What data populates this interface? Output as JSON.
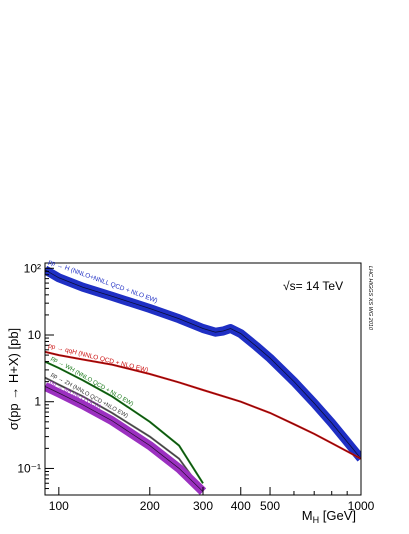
{
  "chart_data": {
    "type": "line",
    "title": "",
    "xlabel": "M_H [GeV]",
    "xlabel_main": "M",
    "xlabel_sub": "H",
    "xlabel_unit": " [GeV]",
    "ylabel": "σ(pp → H+X) [pb]",
    "xscale": "log",
    "yscale": "log",
    "xlim": [
      90,
      1000
    ],
    "ylim": [
      0.04,
      120
    ],
    "x_ticks": [
      100,
      200,
      300,
      400,
      500,
      1000
    ],
    "x_tick_labels": [
      "100",
      "200",
      "300",
      "400",
      "500",
      "1000"
    ],
    "y_ticks": [
      0.1,
      1,
      10,
      100
    ],
    "y_tick_labels": [
      "10⁻¹",
      "1",
      "10",
      "10²"
    ],
    "energy_label": "√s= 14 TeV",
    "side_label": "LHC HIGGS XS WG 2010",
    "grid": false,
    "series": [
      {
        "name": "pp → H (NNLO+NNLL QCD + NLO EW)",
        "color": "#1f2fc4",
        "band": true,
        "x": [
          90,
          100,
          120,
          150,
          200,
          250,
          300,
          330,
          350,
          370,
          400,
          450,
          500,
          600,
          700,
          800,
          900,
          1000
        ],
        "y": [
          95,
          72,
          52,
          38,
          25,
          17.5,
          12.5,
          11,
          11.5,
          12.5,
          10.5,
          6.8,
          4.5,
          2.0,
          0.95,
          0.48,
          0.25,
          0.14
        ]
      },
      {
        "name": "pp → qqH (NNLO QCD + NLO EW)",
        "color": "#cc1111",
        "x": [
          90,
          100,
          120,
          150,
          200,
          250,
          300,
          400,
          500,
          600,
          700,
          800,
          900,
          1000
        ],
        "y": [
          5.6,
          5.0,
          4.3,
          3.6,
          2.6,
          1.95,
          1.5,
          1.0,
          0.68,
          0.46,
          0.33,
          0.24,
          0.18,
          0.14
        ]
      },
      {
        "name": "pp → WH (NNLO QCD + NLO EW)",
        "color": "#1a7a1a",
        "x": [
          90,
          100,
          120,
          150,
          200,
          250,
          300
        ],
        "y": [
          4.0,
          3.2,
          2.1,
          1.2,
          0.5,
          0.22,
          0.06
        ]
      },
      {
        "name": "pp → ZH (NNLO QCD +NLO EW)",
        "color": "#666666",
        "x": [
          90,
          100,
          120,
          150,
          200,
          250,
          300
        ],
        "y": [
          2.3,
          1.8,
          1.2,
          0.68,
          0.3,
          0.14,
          0.045
        ]
      },
      {
        "name": "pp → ttH (NLO QCD)",
        "color": "#9b30c0",
        "band": true,
        "x": [
          90,
          100,
          120,
          150,
          200,
          250,
          300
        ],
        "y": [
          1.7,
          1.35,
          0.9,
          0.52,
          0.22,
          0.1,
          0.045
        ]
      }
    ]
  }
}
